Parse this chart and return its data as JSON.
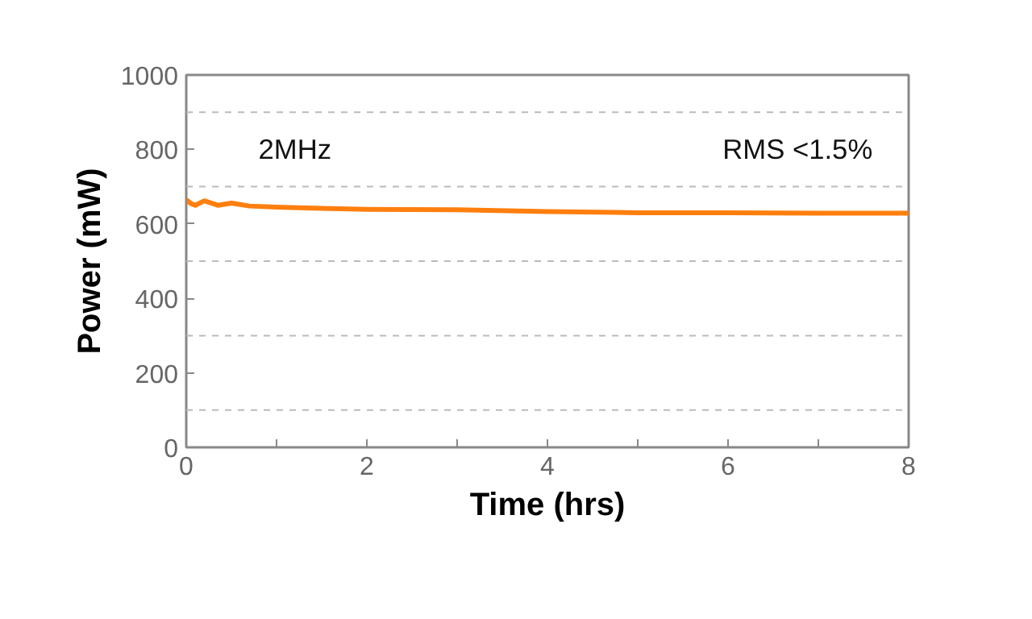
{
  "chart_data": {
    "type": "line",
    "xlabel": "Time (hrs)",
    "ylabel": "Power (mW)",
    "annotations": [
      "2MHz",
      "RMS <1.5%"
    ],
    "x": [
      0,
      0.05,
      0.1,
      0.2,
      0.35,
      0.5,
      0.7,
      1,
      1.5,
      2,
      3,
      4,
      5,
      6,
      7,
      8
    ],
    "series": [
      {
        "color": "#ff7f0e",
        "values": [
          665,
          655,
          650,
          662,
          650,
          656,
          648,
          645,
          642,
          639,
          638,
          633,
          630,
          630,
          629,
          629
        ]
      }
    ],
    "xlim": [
      0,
      8
    ],
    "xticks": [
      0,
      {
        "value": 1,
        "label": null
      },
      2,
      {
        "value": 3,
        "label": null
      },
      4,
      {
        "value": 5,
        "label": null
      },
      6,
      {
        "value": 7,
        "label": null
      },
      8
    ],
    "ylim": [
      0,
      1000
    ],
    "yticks": [
      0,
      200,
      400,
      600,
      800,
      1000
    ],
    "ref_lines": [
      {
        "axis": "y",
        "value": 100,
        "label": null,
        "color": "#bbbbbb",
        "line_style": "dashed"
      },
      {
        "axis": "y",
        "value": 300,
        "label": null,
        "color": "#bbbbbb",
        "line_style": "dashed"
      },
      {
        "axis": "y",
        "value": 500,
        "label": null,
        "color": "#bbbbbb",
        "line_style": "dashed"
      },
      {
        "axis": "y",
        "value": 700,
        "label": null,
        "color": "#bbbbbb",
        "line_style": "dashed"
      },
      {
        "axis": "y",
        "value": 900,
        "label": null,
        "color": "#bbbbbb",
        "line_style": "dashed"
      }
    ],
    "grid": false
  }
}
